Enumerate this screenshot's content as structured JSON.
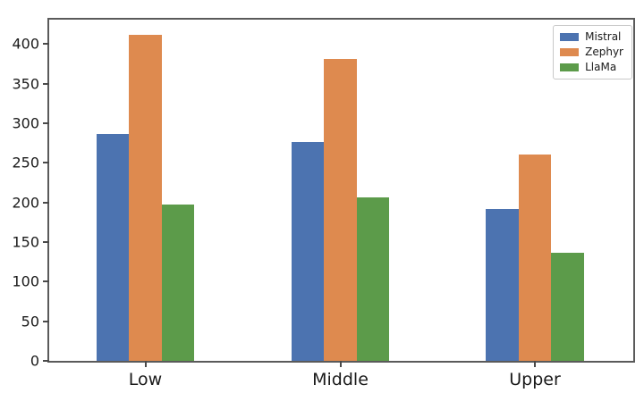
{
  "chart_data": {
    "type": "bar",
    "title": "",
    "xlabel": "",
    "ylabel": "",
    "categories": [
      "Low",
      "Middle",
      "Upper"
    ],
    "series": [
      {
        "name": "Mistral",
        "color": "#4C73B0",
        "values": [
          287,
          276,
          192
        ]
      },
      {
        "name": "Zephyr",
        "color": "#DE8A4F",
        "values": [
          412,
          381,
          261
        ]
      },
      {
        "name": "LlaMa",
        "color": "#5C9B4A",
        "values": [
          198,
          206,
          137
        ]
      }
    ],
    "ylim": [
      0,
      431
    ],
    "yticks": [
      0,
      50,
      100,
      150,
      200,
      250,
      300,
      350,
      400
    ],
    "grid": false,
    "legend_position": "upper right"
  },
  "colors": {
    "background": "#ffffff",
    "spine": "#5a5a5a",
    "tick": "#4a4a4a",
    "text": "#1a1a1a",
    "legend_border": "#c8c8c8"
  }
}
